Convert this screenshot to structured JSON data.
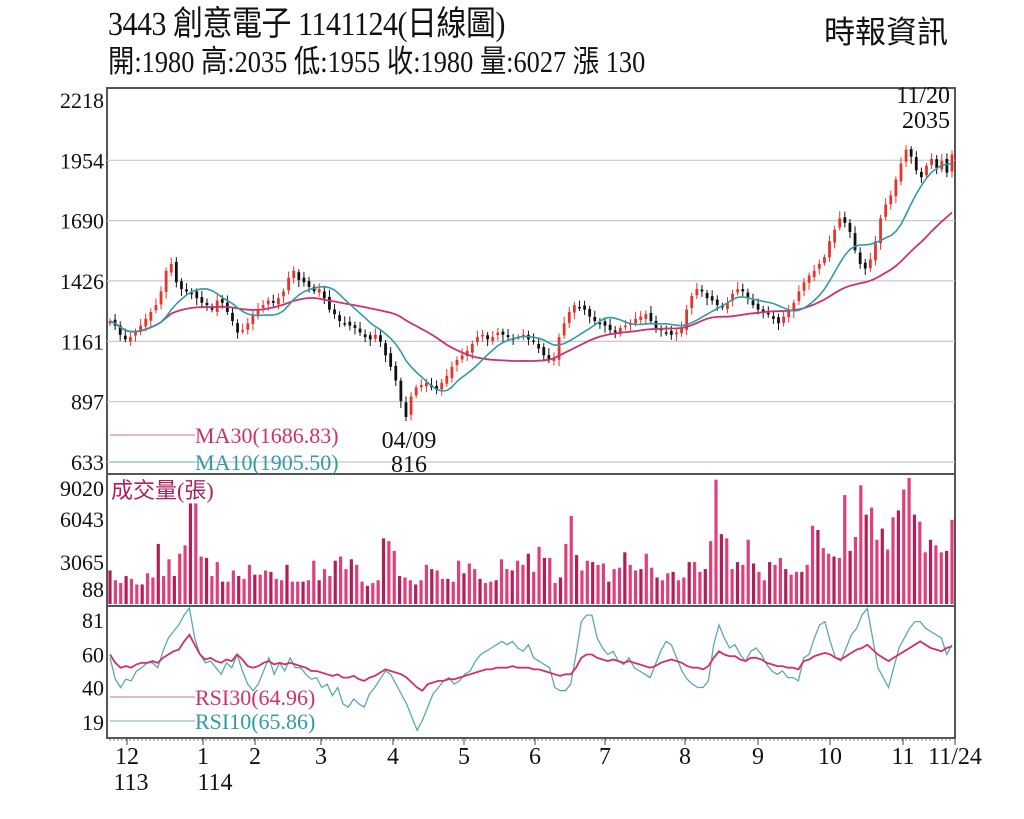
{
  "header": {
    "title": "3443  創意電子 1141124(日線圖)",
    "ohlc_line": "開:1980 高:2035 低:1955 收:1980 量:6027 漲 130",
    "source": "時報資訊"
  },
  "colors": {
    "up": "#e8332b",
    "down": "#111111",
    "ma30": "#d0306b",
    "ma10": "#2f9aa8",
    "volume": "#e0407a",
    "volume_dark": "#b01f5a",
    "rsi30": "#d0306b",
    "rsi10": "#5aa8b4",
    "grid": "#c8c8c8",
    "frame": "#555555"
  },
  "chart_data": [
    {
      "type": "candlestick",
      "title": "3443 創意電子 1141124(日線圖)",
      "panel": "price",
      "y_ticks": [
        2218,
        1954,
        1690,
        1426,
        1161,
        897,
        633
      ],
      "ylim": [
        633,
        2218
      ],
      "x_tick_labels": [
        "12",
        "1",
        "2",
        "3",
        "4",
        "5",
        "6",
        "7",
        "8",
        "9",
        "10",
        "11",
        "11/24"
      ],
      "x_year_labels": [
        "113",
        "114"
      ],
      "latest": {
        "open": 1980,
        "high": 2035,
        "low": 1955,
        "close": 1980,
        "volume": 6027,
        "change": 130
      },
      "annotations": [
        {
          "label_date": "11/20",
          "label_value": "2035",
          "type": "high"
        },
        {
          "label_date": "04/09",
          "label_value": "816",
          "type": "low"
        }
      ],
      "legend": [
        {
          "name": "MA30",
          "value": "MA30(1686.83)"
        },
        {
          "name": "MA10",
          "value": "MA10(1905.50)"
        }
      ],
      "close_series": [
        1250,
        1230,
        1190,
        1170,
        1180,
        1200,
        1230,
        1260,
        1290,
        1320,
        1380,
        1470,
        1500,
        1420,
        1390,
        1380,
        1370,
        1350,
        1330,
        1320,
        1300,
        1340,
        1330,
        1290,
        1250,
        1200,
        1210,
        1240,
        1280,
        1300,
        1320,
        1340,
        1330,
        1350,
        1380,
        1440,
        1470,
        1430,
        1420,
        1400,
        1380,
        1390,
        1350,
        1300,
        1280,
        1250,
        1240,
        1230,
        1220,
        1200,
        1180,
        1170,
        1190,
        1160,
        1100,
        1050,
        990,
        900,
        830,
        920,
        960,
        970,
        980,
        960,
        950,
        980,
        1010,
        1050,
        1080,
        1100,
        1120,
        1150,
        1180,
        1190,
        1170,
        1180,
        1200,
        1190,
        1180,
        1170,
        1180,
        1190,
        1170,
        1160,
        1130,
        1100,
        1080,
        1090,
        1180,
        1240,
        1290,
        1320,
        1310,
        1300,
        1270,
        1250,
        1240,
        1230,
        1210,
        1200,
        1220,
        1230,
        1240,
        1260,
        1270,
        1280,
        1250,
        1220,
        1210,
        1200,
        1190,
        1200,
        1220,
        1300,
        1360,
        1390,
        1380,
        1350,
        1340,
        1320,
        1310,
        1330,
        1370,
        1390,
        1380,
        1350,
        1320,
        1300,
        1290,
        1280,
        1260,
        1240,
        1270,
        1300,
        1330,
        1380,
        1420,
        1450,
        1470,
        1500,
        1530,
        1600,
        1650,
        1700,
        1680,
        1640,
        1560,
        1500,
        1480,
        1520,
        1600,
        1700,
        1760,
        1800,
        1870,
        1940,
        2000,
        1970,
        1910,
        1880,
        1930,
        1960,
        1920,
        1950,
        1900,
        1980
      ],
      "ma10_final": 1905.5,
      "ma30_final": 1686.83
    },
    {
      "type": "bar",
      "title": "成交量(張)",
      "panel": "volume",
      "y_ticks": [
        9020,
        6043,
        3065,
        88
      ],
      "ylim": [
        0,
        9020
      ],
      "values": [
        2400,
        1700,
        1500,
        2000,
        1800,
        1400,
        1400,
        2200,
        1900,
        4300,
        2000,
        3200,
        2000,
        3600,
        4200,
        7200,
        7200,
        3400,
        3300,
        2000,
        3000,
        1600,
        1600,
        2400,
        2000,
        1800,
        2800,
        2100,
        2100,
        2400,
        2300,
        1800,
        1700,
        2800,
        1600,
        1600,
        1600,
        1700,
        3100,
        1700,
        2500,
        2000,
        3100,
        3400,
        2500,
        3200,
        2800,
        1600,
        1300,
        1500,
        1700,
        4700,
        4500,
        3800,
        2000,
        1900,
        1700,
        1400,
        1700,
        2800,
        2500,
        2400,
        1800,
        1800,
        1600,
        3100,
        2200,
        2900,
        2500,
        1800,
        1500,
        1600,
        1700,
        3200,
        2500,
        2400,
        3100,
        2800,
        3600,
        2300,
        4100,
        3300,
        3300,
        1500,
        1900,
        4300,
        6300,
        3500,
        2400,
        3100,
        3000,
        2800,
        2900,
        1600,
        2500,
        2600,
        3700,
        2800,
        2400,
        2500,
        3600,
        2600,
        1900,
        1700,
        2200,
        2300,
        1700,
        1900,
        3000,
        3000,
        2300,
        2500,
        4500,
        8900,
        5000,
        4700,
        2500,
        3000,
        2800,
        4600,
        2900,
        2300,
        1700,
        3000,
        2800,
        3300,
        2500,
        2100,
        2300,
        2300,
        2800,
        5600,
        5300,
        4000,
        3600,
        3400,
        3300,
        7800,
        3800,
        4800,
        8500,
        6400,
        6900,
        4600,
        5400,
        3900,
        6200,
        6700,
        8200,
        9020,
        6400,
        5900,
        3700,
        4600,
        4200,
        3700,
        3800,
        6027
      ]
    },
    {
      "type": "line",
      "panel": "rsi",
      "y_ticks": [
        81,
        60,
        40,
        19
      ],
      "ylim": [
        10,
        90
      ],
      "legend": [
        {
          "name": "RSI30",
          "value": "RSI30(64.96)"
        },
        {
          "name": "RSI10",
          "value": "RSI10(65.86)"
        }
      ],
      "series": [
        {
          "name": "RSI30",
          "final": 64.96,
          "values": [
            60,
            55,
            52,
            53,
            52,
            54,
            55,
            55,
            56,
            55,
            58,
            60,
            62,
            63,
            68,
            72,
            66,
            60,
            57,
            58,
            56,
            55,
            57,
            56,
            60,
            57,
            53,
            52,
            53,
            55,
            56,
            54,
            55,
            54,
            55,
            54,
            53,
            52,
            50,
            50,
            49,
            48,
            47,
            48,
            46,
            46,
            47,
            45,
            44,
            46,
            47,
            49,
            51,
            50,
            49,
            48,
            46,
            43,
            40,
            38,
            42,
            43,
            44,
            44,
            45,
            45,
            46,
            47,
            48,
            49,
            50,
            51,
            51,
            52,
            52,
            52,
            53,
            52,
            52,
            52,
            51,
            51,
            50,
            49,
            48,
            47,
            48,
            48,
            52,
            58,
            60,
            60,
            58,
            57,
            56,
            57,
            56,
            55,
            56,
            55,
            54,
            53,
            52,
            53,
            55,
            56,
            57,
            56,
            55,
            53,
            52,
            52,
            51,
            53,
            58,
            62,
            60,
            59,
            59,
            57,
            56,
            58,
            58,
            57,
            55,
            54,
            53,
            53,
            52,
            52,
            51,
            56,
            57,
            59,
            60,
            61,
            60,
            58,
            57,
            59,
            61,
            63,
            64,
            66,
            63,
            60,
            58,
            56,
            58,
            60,
            62,
            64,
            66,
            68,
            66,
            64,
            63,
            62,
            64,
            65
          ]
        },
        {
          "name": "RSI10",
          "final": 65.86,
          "values": [
            58,
            45,
            40,
            45,
            44,
            50,
            52,
            55,
            55,
            52,
            62,
            70,
            74,
            78,
            84,
            90,
            70,
            60,
            55,
            56,
            52,
            48,
            55,
            52,
            60,
            50,
            42,
            38,
            42,
            50,
            58,
            48,
            55,
            50,
            58,
            52,
            52,
            48,
            45,
            46,
            40,
            42,
            35,
            40,
            30,
            28,
            33,
            30,
            28,
            36,
            40,
            45,
            50,
            48,
            42,
            36,
            30,
            22,
            14,
            20,
            28,
            36,
            40,
            44,
            46,
            42,
            44,
            48,
            50,
            56,
            60,
            62,
            64,
            66,
            68,
            66,
            68,
            64,
            62,
            66,
            58,
            56,
            54,
            52,
            40,
            38,
            38,
            42,
            60,
            80,
            84,
            84,
            70,
            64,
            60,
            62,
            56,
            54,
            58,
            52,
            50,
            48,
            46,
            54,
            62,
            68,
            66,
            58,
            50,
            45,
            42,
            40,
            40,
            44,
            66,
            78,
            70,
            64,
            66,
            60,
            56,
            62,
            64,
            60,
            54,
            50,
            48,
            50,
            46,
            46,
            44,
            58,
            60,
            70,
            78,
            80,
            68,
            58,
            56,
            64,
            72,
            76,
            84,
            88,
            70,
            52,
            46,
            40,
            52,
            64,
            70,
            76,
            80,
            80,
            76,
            74,
            72,
            70,
            60,
            66
          ]
        }
      ]
    }
  ],
  "axes": {
    "price_labels": [
      "2218",
      "1954",
      "1690",
      "1426",
      "1161",
      "897",
      "633"
    ],
    "volume_labels": [
      "9020",
      "6043",
      "3065",
      "88"
    ],
    "rsi_labels": [
      "81",
      "60",
      "40",
      "19"
    ],
    "x_month_labels": [
      "12",
      "1",
      "2",
      "3",
      "4",
      "5",
      "6",
      "7",
      "8",
      "9",
      "10",
      "11",
      "11/24"
    ],
    "x_year_labels": [
      "113",
      "114"
    ]
  },
  "annotations": {
    "high_date": "11/20",
    "high_value": "2035",
    "low_date": "04/09",
    "low_value": "816"
  },
  "legend": {
    "ma30": "MA30(1686.83)",
    "ma10": "MA10(1905.50)",
    "volume_title": "成交量(張)",
    "rsi30": "RSI30(64.96)",
    "rsi10": "RSI10(65.86)"
  }
}
